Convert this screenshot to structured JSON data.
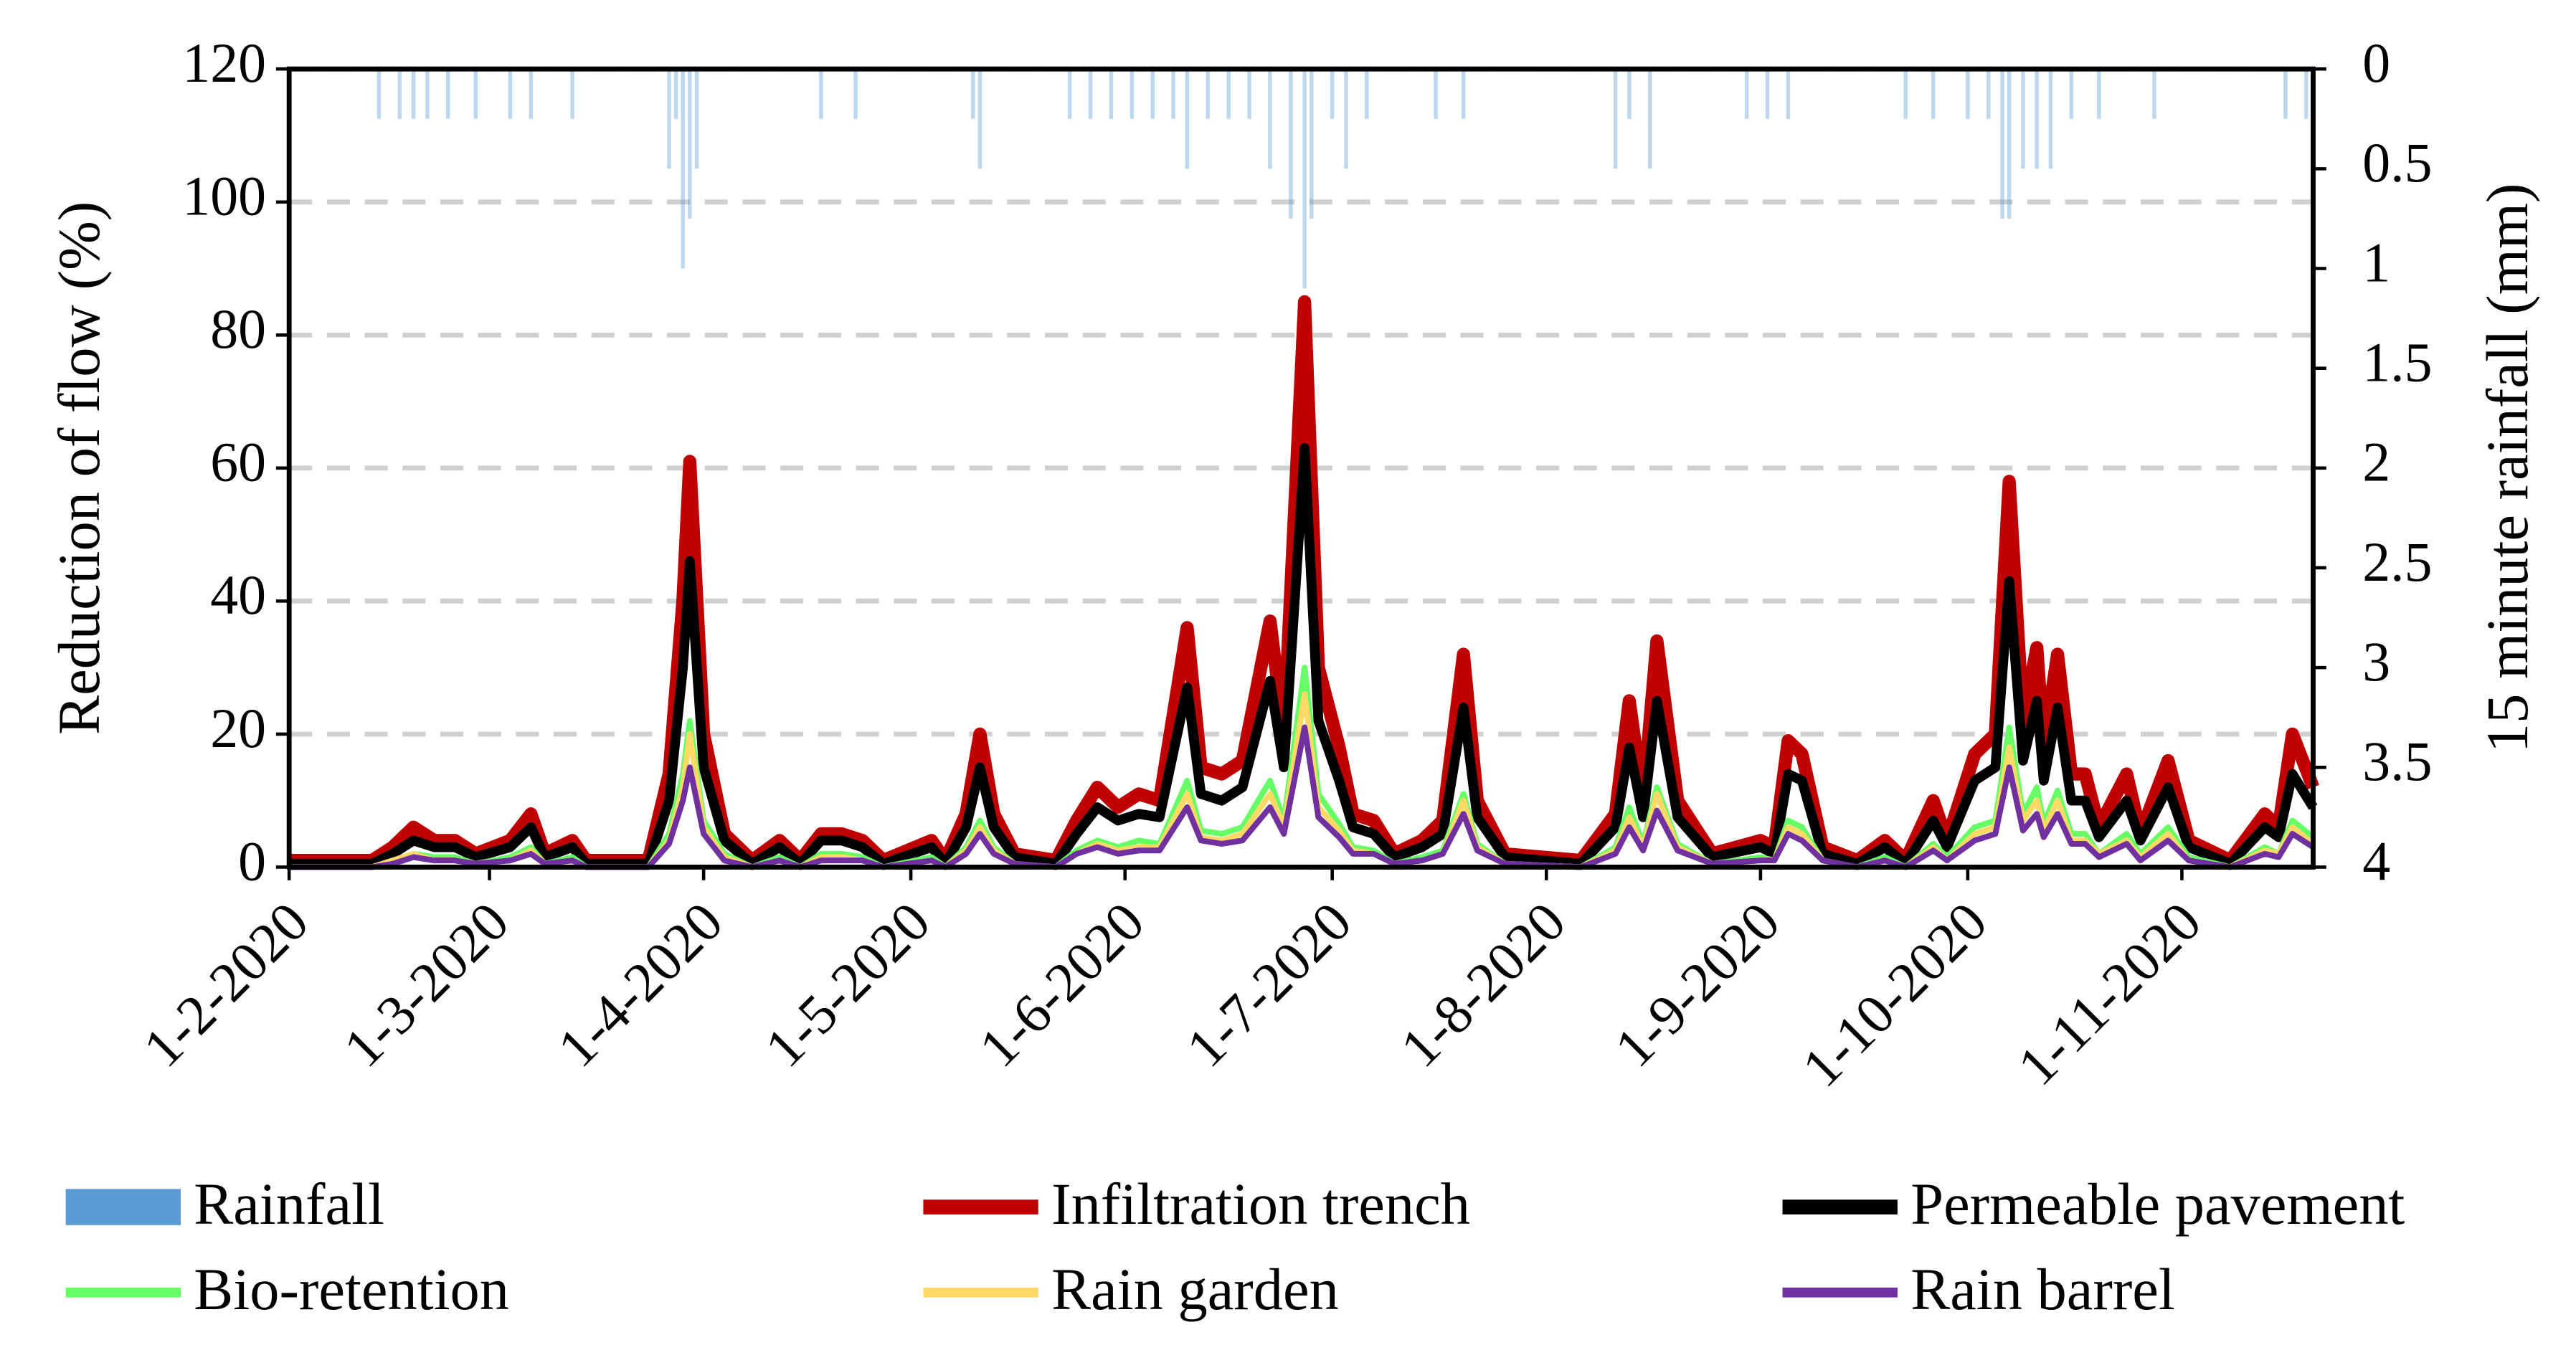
{
  "chart_data": {
    "type": "line",
    "y_label": "Reduction of flow (%)",
    "y2_label": "15 minute rainfall (mm)",
    "xlim": [
      "2020-02-01",
      "2020-11-20"
    ],
    "xticks": [
      {
        "value": "2020-02-01",
        "label": "1-2-2020"
      },
      {
        "value": "2020-03-01",
        "label": "1-3-2020"
      },
      {
        "value": "2020-04-01",
        "label": "1-4-2020"
      },
      {
        "value": "2020-05-01",
        "label": "1-5-2020"
      },
      {
        "value": "2020-06-01",
        "label": "1-6-2020"
      },
      {
        "value": "2020-07-01",
        "label": "1-7-2020"
      },
      {
        "value": "2020-08-01",
        "label": "1-8-2020"
      },
      {
        "value": "2020-09-01",
        "label": "1-9-2020"
      },
      {
        "value": "2020-10-01",
        "label": "1-10-2020"
      },
      {
        "value": "2020-11-01",
        "label": "1-11-2020"
      }
    ],
    "ylim": [
      0,
      120
    ],
    "yticks": [
      0,
      20,
      40,
      60,
      80,
      100,
      120
    ],
    "y2lim": [
      0,
      4
    ],
    "y2_inverted": true,
    "y2ticks": [
      0,
      0.5,
      1,
      1.5,
      2,
      2.5,
      3,
      3.5,
      4
    ],
    "grid": true,
    "legend": "bottom",
    "x": [
      "2020-02-01",
      "2020-02-13",
      "2020-02-16",
      "2020-02-19",
      "2020-02-22",
      "2020-02-25",
      "2020-02-28",
      "2020-03-04",
      "2020-03-07",
      "2020-03-09",
      "2020-03-13",
      "2020-03-15",
      "2020-03-24",
      "2020-03-27",
      "2020-03-29",
      "2020-03-30",
      "2020-04-01",
      "2020-04-04",
      "2020-04-08",
      "2020-04-12",
      "2020-04-15",
      "2020-04-18",
      "2020-04-21",
      "2020-04-24",
      "2020-04-27",
      "2020-05-04",
      "2020-05-06",
      "2020-05-09",
      "2020-05-11",
      "2020-05-13",
      "2020-05-16",
      "2020-05-22",
      "2020-05-25",
      "2020-05-28",
      "2020-05-31",
      "2020-06-03",
      "2020-06-06",
      "2020-06-10",
      "2020-06-12",
      "2020-06-15",
      "2020-06-18",
      "2020-06-22",
      "2020-06-24",
      "2020-06-27",
      "2020-06-29",
      "2020-07-02",
      "2020-07-04",
      "2020-07-07",
      "2020-07-10",
      "2020-07-14",
      "2020-07-17",
      "2020-07-20",
      "2020-07-22",
      "2020-07-26",
      "2020-08-06",
      "2020-08-11",
      "2020-08-13",
      "2020-08-15",
      "2020-08-17",
      "2020-08-20",
      "2020-08-25",
      "2020-09-01",
      "2020-09-03",
      "2020-09-05",
      "2020-09-07",
      "2020-09-10",
      "2020-09-15",
      "2020-09-19",
      "2020-09-22",
      "2020-09-26",
      "2020-09-28",
      "2020-10-02",
      "2020-10-05",
      "2020-10-07",
      "2020-10-09",
      "2020-10-11",
      "2020-10-12",
      "2020-10-14",
      "2020-10-16",
      "2020-10-18",
      "2020-10-20",
      "2020-10-24",
      "2020-10-26",
      "2020-10-30",
      "2020-11-02",
      "2020-11-08",
      "2020-11-13",
      "2020-11-15",
      "2020-11-17",
      "2020-11-20"
    ],
    "series": [
      {
        "name": "Rainfall",
        "type": "bar",
        "axis": "y2",
        "color": "#5b9bd5",
        "x": [
          "2020-02-14",
          "2020-02-17",
          "2020-02-19",
          "2020-02-21",
          "2020-02-24",
          "2020-02-28",
          "2020-03-04",
          "2020-03-07",
          "2020-03-13",
          "2020-03-27",
          "2020-03-28",
          "2020-03-29",
          "2020-03-30",
          "2020-03-31",
          "2020-04-18",
          "2020-04-23",
          "2020-05-10",
          "2020-05-11",
          "2020-05-24",
          "2020-05-27",
          "2020-05-30",
          "2020-06-02",
          "2020-06-05",
          "2020-06-08",
          "2020-06-10",
          "2020-06-13",
          "2020-06-16",
          "2020-06-19",
          "2020-06-22",
          "2020-06-25",
          "2020-06-27",
          "2020-06-28",
          "2020-07-01",
          "2020-07-03",
          "2020-07-06",
          "2020-07-16",
          "2020-07-20",
          "2020-08-11",
          "2020-08-13",
          "2020-08-16",
          "2020-08-30",
          "2020-09-02",
          "2020-09-05",
          "2020-09-22",
          "2020-09-26",
          "2020-10-01",
          "2020-10-04",
          "2020-10-06",
          "2020-10-07",
          "2020-10-09",
          "2020-10-11",
          "2020-10-13",
          "2020-10-16",
          "2020-10-20",
          "2020-10-28",
          "2020-11-16",
          "2020-11-19"
        ],
        "values": [
          0.25,
          0.25,
          0.25,
          0.25,
          0.25,
          0.25,
          0.25,
          0.25,
          0.25,
          0.5,
          0.25,
          1.0,
          0.75,
          0.5,
          0.25,
          0.25,
          0.25,
          0.5,
          0.25,
          0.25,
          0.25,
          0.25,
          0.25,
          0.25,
          0.5,
          0.25,
          0.25,
          0.25,
          0.5,
          0.75,
          1.1,
          0.75,
          0.25,
          0.5,
          0.25,
          0.25,
          0.25,
          0.5,
          0.25,
          0.5,
          0.25,
          0.25,
          0.25,
          0.25,
          0.25,
          0.25,
          0.25,
          0.75,
          0.75,
          0.5,
          0.5,
          0.5,
          0.25,
          0.25,
          0.25,
          0.25,
          0.25
        ]
      },
      {
        "name": "Infiltration trench",
        "color": "#c00000",
        "values": [
          1,
          1,
          3,
          6,
          4,
          4,
          2,
          4,
          8,
          2,
          4,
          1,
          1,
          14,
          40,
          61,
          20,
          5,
          1,
          4,
          1,
          5,
          5,
          4,
          1,
          4,
          1,
          8,
          20,
          8,
          2,
          1,
          7,
          12,
          9,
          11,
          10,
          36,
          15,
          14,
          16,
          37,
          20,
          85,
          30,
          18,
          8,
          7,
          2,
          4,
          7,
          32,
          10,
          2,
          1,
          8,
          25,
          10,
          34,
          10,
          2,
          4,
          3,
          19,
          17,
          3,
          1,
          4,
          1,
          10,
          4,
          17,
          20,
          58,
          22,
          33,
          18,
          32,
          14,
          14,
          6,
          14,
          5,
          16,
          4,
          1,
          8,
          6,
          20,
          12
        ]
      },
      {
        "name": "Permeable pavement",
        "color": "#000000",
        "values": [
          0.5,
          0.5,
          2,
          4,
          3,
          3,
          1.5,
          3,
          6,
          1.5,
          3,
          0.5,
          0.5,
          10,
          30,
          46,
          15,
          4,
          0.5,
          3,
          0.5,
          4,
          4,
          3,
          0.5,
          3,
          0.5,
          6,
          15,
          6,
          1.5,
          0.5,
          5,
          9,
          7,
          8,
          7.5,
          27,
          11,
          10,
          12,
          28,
          15,
          63,
          22,
          13,
          6,
          5,
          1.5,
          3,
          5,
          24,
          7.5,
          1.5,
          0.5,
          6,
          18,
          7.5,
          25,
          7.5,
          1.5,
          3,
          2,
          14,
          13,
          2,
          0.5,
          3,
          0.5,
          7,
          3,
          13,
          15,
          43,
          16,
          25,
          13,
          24,
          10,
          10,
          4.5,
          10,
          4,
          12,
          3,
          0.5,
          6,
          4.5,
          14,
          9
        ]
      },
      {
        "name": "Bio-retention",
        "color": "#66ff66",
        "values": [
          0,
          0,
          1,
          2,
          1.5,
          1.5,
          0.5,
          1.5,
          3,
          0.5,
          1.5,
          0,
          0,
          5,
          14,
          22,
          7,
          2,
          0,
          1.5,
          0,
          2,
          2,
          1.5,
          0,
          1.5,
          0,
          3,
          7,
          3,
          0.5,
          0,
          2.5,
          4,
          3,
          4,
          3.5,
          13,
          5.5,
          5,
          6,
          13,
          7,
          30,
          11,
          6.5,
          3,
          2.5,
          0.5,
          1.5,
          2.5,
          11,
          3.5,
          0.5,
          0,
          3,
          9,
          3.5,
          12,
          3.5,
          0.5,
          1.5,
          1,
          7,
          6,
          1,
          0,
          1.5,
          0,
          3.5,
          1.5,
          6,
          7,
          21,
          8,
          12,
          6.5,
          11.5,
          5,
          5,
          2,
          5,
          2,
          6,
          1.5,
          0,
          3,
          2,
          7,
          4.5
        ]
      },
      {
        "name": "Rain garden",
        "color": "#ffd966",
        "values": [
          0,
          0,
          1,
          2,
          1,
          1,
          0.5,
          1,
          2.5,
          0.5,
          1,
          0,
          0,
          4,
          12,
          20,
          6,
          1.5,
          0,
          1,
          0,
          1.5,
          1.5,
          1,
          0,
          1,
          0,
          2.5,
          6,
          2.5,
          0.5,
          0,
          2,
          3.5,
          2.5,
          3,
          3,
          11,
          4.5,
          4,
          5,
          11,
          6,
          26,
          9,
          5.5,
          2.5,
          2,
          0.5,
          1,
          2,
          10,
          3,
          0.5,
          0,
          2.5,
          7.5,
          3,
          11,
          3,
          0.5,
          1,
          1,
          6,
          5,
          1,
          0,
          1,
          0,
          3,
          1,
          5,
          6,
          18,
          7,
          10,
          5.5,
          10,
          4,
          4,
          2,
          4,
          1.5,
          5,
          1,
          0,
          2.5,
          2,
          6,
          3.5
        ]
      },
      {
        "name": "Rain barrel",
        "color": "#7030a0",
        "values": [
          0,
          0,
          0.5,
          1.5,
          1,
          1,
          0.5,
          1,
          2,
          0.5,
          1,
          0,
          0,
          3.5,
          10,
          15,
          5,
          1,
          0,
          1,
          0,
          1,
          1,
          1,
          0,
          1,
          0,
          2,
          5,
          2,
          0.5,
          0,
          2,
          3,
          2,
          2.5,
          2.5,
          9,
          4,
          3.5,
          4,
          9,
          5,
          21,
          7.5,
          4.5,
          2,
          2,
          0.5,
          1,
          2,
          8,
          2.5,
          0.5,
          0,
          2,
          6,
          2.5,
          8.5,
          2.5,
          0.5,
          1,
          1,
          5,
          4,
          1,
          0,
          1,
          0,
          2.5,
          1,
          4,
          5,
          15,
          5.5,
          8,
          4.5,
          8,
          3.5,
          3.5,
          1.5,
          3.5,
          1,
          4,
          1,
          0,
          2,
          1.5,
          5,
          3
        ]
      }
    ]
  }
}
